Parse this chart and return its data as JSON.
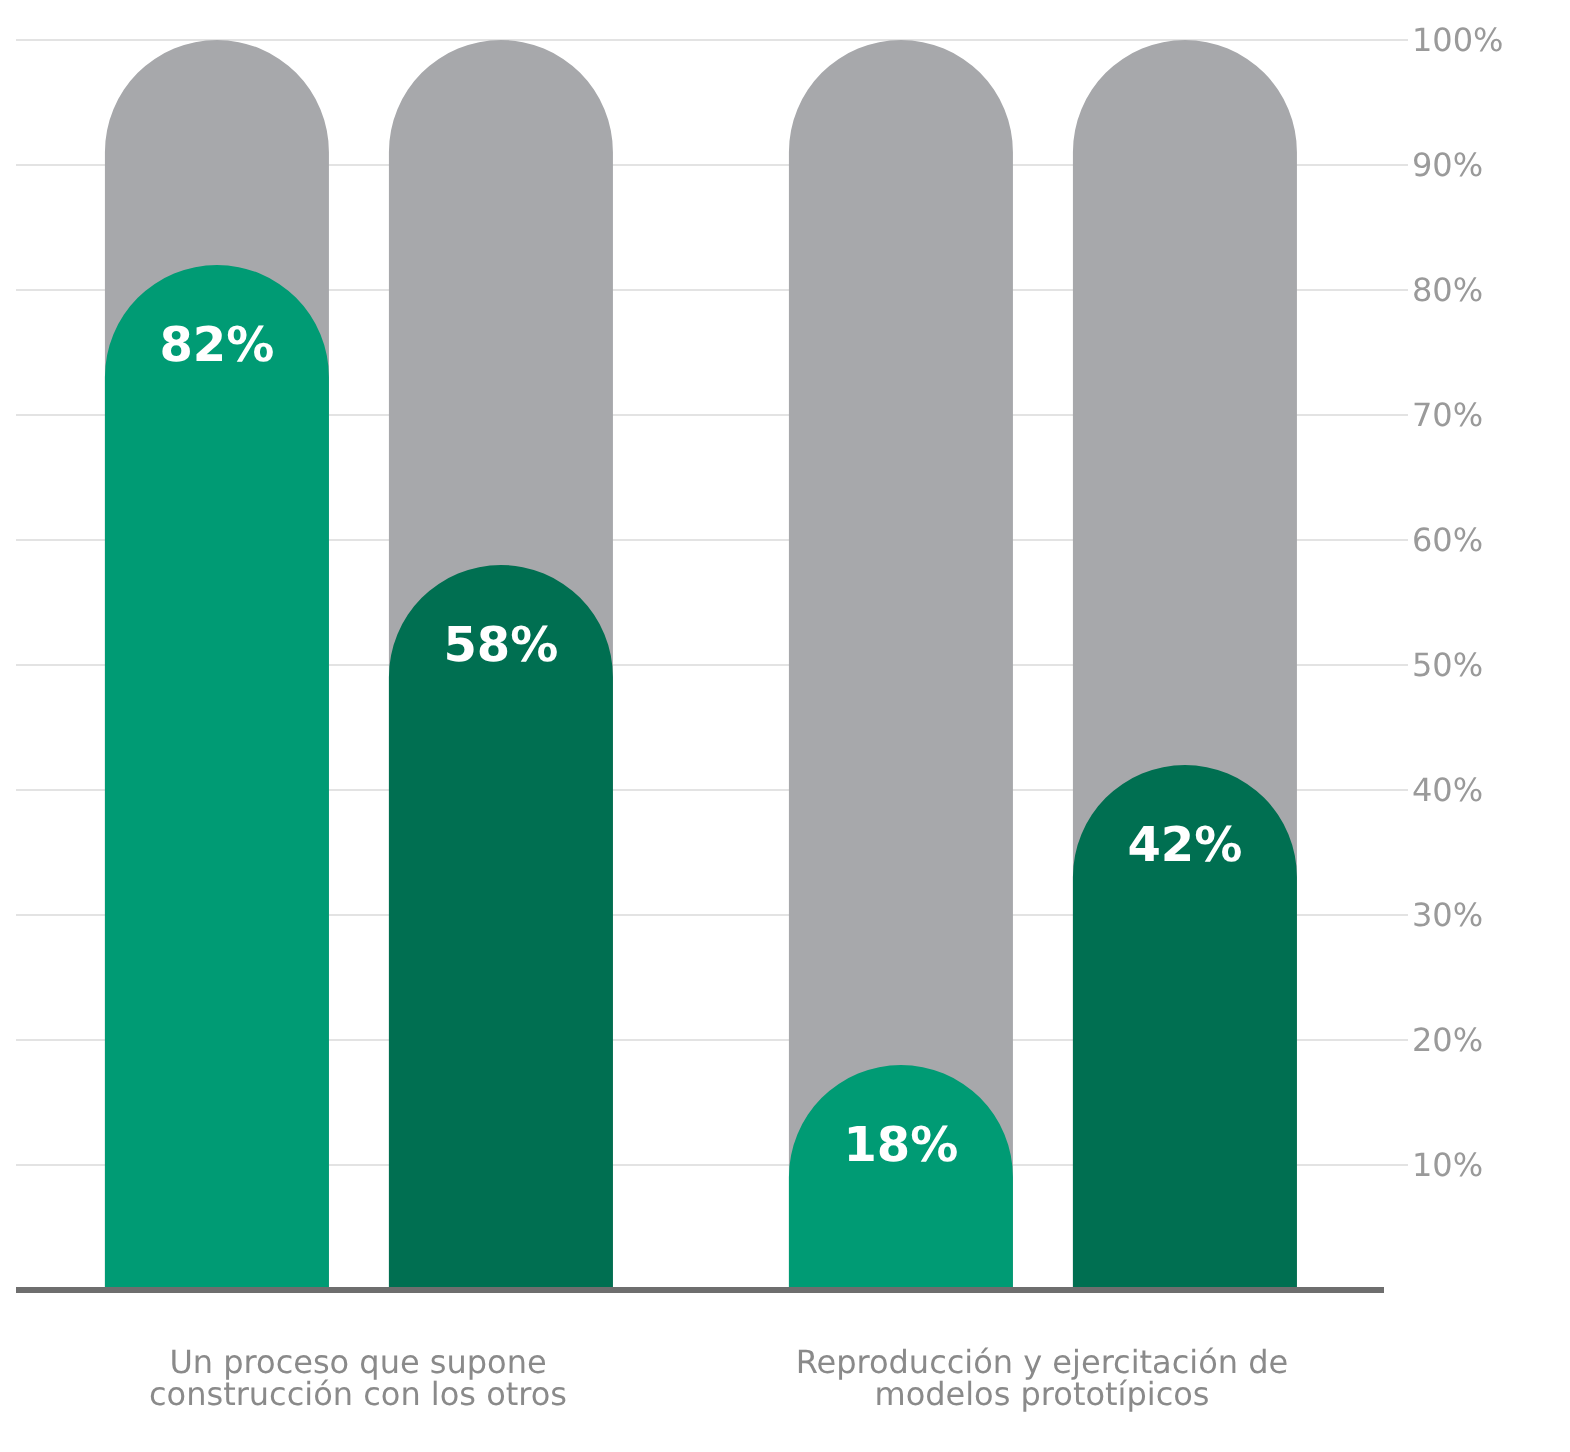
{
  "chart_data": {
    "type": "bar",
    "categories": [
      "Un proceso que supone construcción con los otros",
      "Reproducción y ejercitación de modelos prototípicos"
    ],
    "series": [
      {
        "color": "#009b74",
        "values": [
          82,
          18
        ]
      },
      {
        "color": "#006f51",
        "values": [
          58,
          42
        ]
      }
    ],
    "ylim": [
      0,
      100
    ],
    "yticks": [
      {
        "value": 10,
        "label": "10%"
      },
      {
        "value": 20,
        "label": "20%"
      },
      {
        "value": 30,
        "label": "30%"
      },
      {
        "value": 40,
        "label": "40%"
      },
      {
        "value": 50,
        "label": "50%"
      },
      {
        "value": 60,
        "label": "60%"
      },
      {
        "value": 70,
        "label": "70%"
      },
      {
        "value": 80,
        "label": "80%"
      },
      {
        "value": 90,
        "label": "90%"
      },
      {
        "value": 100,
        "label": "100%"
      }
    ],
    "value_labels": [
      [
        "82%",
        "18%"
      ],
      [
        "58%",
        "42%"
      ]
    ],
    "grid": "y"
  }
}
